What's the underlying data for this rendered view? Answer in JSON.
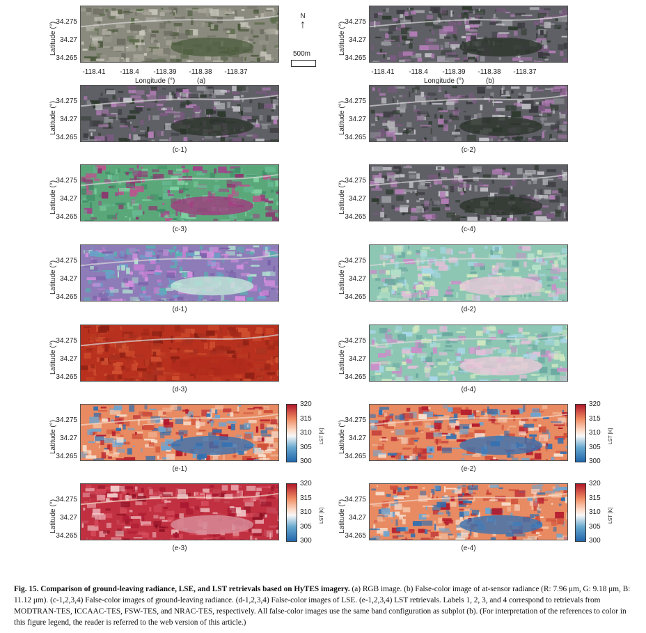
{
  "axes": {
    "ylabel": "Latitude (°)",
    "xlabel": "Longitude (°)",
    "yticks": [
      "34.275",
      "34.27",
      "34.265"
    ],
    "xticks": [
      "-118.41",
      "-118.4",
      "-118.39",
      "-118.38",
      "-118.37"
    ]
  },
  "panels": [
    {
      "label": "(a)",
      "style": "rgb"
    },
    {
      "label": "(b)",
      "style": "fc"
    },
    {
      "label": "(c-1)",
      "style": "fc"
    },
    {
      "label": "(c-2)",
      "style": "fc"
    },
    {
      "label": "(c-3)",
      "style": "green"
    },
    {
      "label": "(c-4)",
      "style": "fc"
    },
    {
      "label": "(d-1)",
      "style": "purple"
    },
    {
      "label": "(d-2)",
      "style": "pastel"
    },
    {
      "label": "(d-3)",
      "style": "red"
    },
    {
      "label": "(d-4)",
      "style": "pastel"
    },
    {
      "label": "(e-1)",
      "style": "lst"
    },
    {
      "label": "(e-2)",
      "style": "lst"
    },
    {
      "label": "(e-3)",
      "style": "lstred"
    },
    {
      "label": "(e-4)",
      "style": "lst"
    }
  ],
  "north": {
    "letter": "N",
    "arrow": "↑"
  },
  "scale": {
    "label": "500m"
  },
  "colorbar": {
    "label": "LST [K]",
    "ticks": [
      "320",
      "315",
      "310",
      "305",
      "300"
    ]
  },
  "colors": {
    "hot": "#b2182b",
    "mid": "#f7f7f7",
    "cold": "#2166ac"
  },
  "caption": {
    "fig": "Fig. 15.",
    "title": "Comparison of ground-leaving radiance, LSE, and LST retrievals based on HyTES imagery.",
    "body": "(a) RGB image. (b) False-color image of at-sensor radiance (R: 7.96 μm, G: 9.18 μm, B: 11.12 μm). (c-1,2,3,4) False-color images of ground-leaving radiance. (d-1,2,3,4) False-color images of LSE. (e-1,2,3,4) LST retrievals. Labels 1, 2, 3, and 4 correspond to retrievals from MODTRAN-TES, ICCAAC-TES, FSW-TES, and NRAC-TES, respectively. All false-color images use the same band configuration as subplot (b). (For interpretation of the references to color in this figure legend, the reader is referred to the web version of this article.)"
  }
}
